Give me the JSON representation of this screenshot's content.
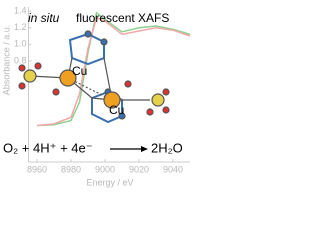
{
  "chart_data": {
    "type": "line",
    "title_italic": "in situ",
    "title": "fluorescent XAFS",
    "x_label": "Energy / eV",
    "y_label": "Absorbance / a.u.",
    "x": [
      8960,
      8970,
      8980,
      8985,
      8990,
      8995,
      9000,
      9010,
      9020,
      9030,
      9040,
      9050
    ],
    "series": [
      {
        "color": "#8fcf8f",
        "values": [
          0.02,
          0.03,
          0.08,
          0.3,
          0.9,
          1.38,
          1.3,
          1.15,
          1.2,
          1.22,
          1.18,
          1.12
        ]
      },
      {
        "color": "#f0a8a8",
        "values": [
          0.02,
          0.04,
          0.12,
          0.4,
          0.95,
          1.32,
          1.28,
          1.12,
          1.16,
          1.2,
          1.17,
          1.1
        ]
      }
    ],
    "xlim": [
      8955,
      9050
    ],
    "xticks": [
      8960,
      8980,
      9000,
      9020,
      9040
    ],
    "ylim": [
      -0.42,
      1.45
    ],
    "yticks": [
      0.8,
      {
        "value": 1,
        "label": "1.0"
      },
      1.2,
      1.4
    ],
    "annotations": {
      "cu_left": "Cu",
      "cu_right": "Cu",
      "reactants": "O₂ + 4H⁺ + 4e⁻",
      "product": "2H₂O"
    }
  }
}
